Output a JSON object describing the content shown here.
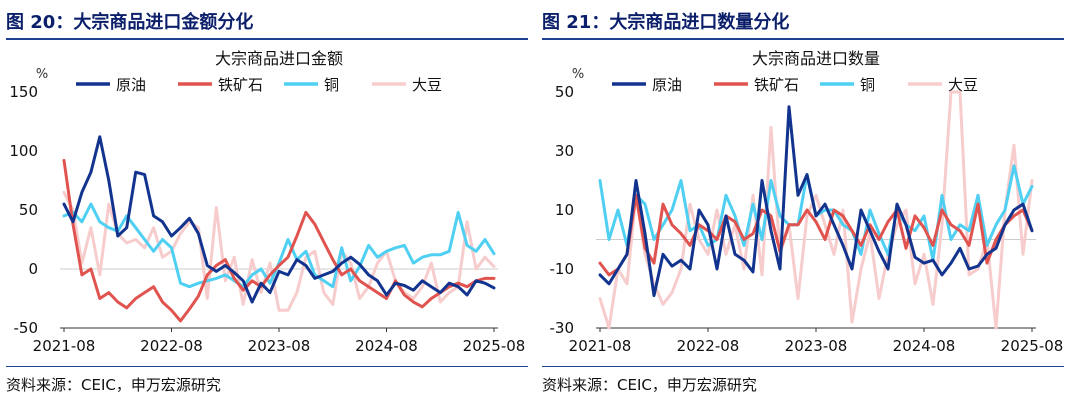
{
  "figures": [
    {
      "fig_title": "图 20：大宗商品进口金额分化",
      "source": "资料来源：CEIC，申万宏源研究"
    },
    {
      "fig_title": "图 21：大宗商品进口数量分化",
      "source": "资料来源：CEIC，申万宏源研究"
    }
  ],
  "colors": {
    "title_blue": "#0b1f6b",
    "crude": "#12348f",
    "iron_ore": "#e0534f",
    "copper": "#4fd0f2",
    "soybean": "#f7cccc"
  },
  "chart_data": [
    {
      "type": "line",
      "title": "大宗商品进口金额",
      "y_unit": "%",
      "ylim": [
        -50,
        150
      ],
      "yticks": [
        -50,
        0,
        50,
        100,
        150
      ],
      "x_tick_labels": [
        "2021-08",
        "2022-08",
        "2023-08",
        "2024-08",
        "2025-08"
      ],
      "x_tick_index": [
        0,
        12,
        24,
        36,
        48
      ],
      "legend_position": "top",
      "grid": false,
      "series": [
        {
          "name": "原油",
          "color": "#12348f",
          "values": [
            55,
            40,
            65,
            82,
            112,
            75,
            28,
            35,
            82,
            80,
            45,
            40,
            28,
            35,
            43,
            30,
            3,
            -2,
            3,
            -3,
            -10,
            -28,
            -12,
            -20,
            -2,
            -5,
            8,
            3,
            -8,
            -5,
            -2,
            5,
            10,
            4,
            -5,
            -10,
            -22,
            -12,
            -14,
            -18,
            -10,
            -15,
            -20,
            -12,
            -15,
            -22,
            -10,
            -12,
            -16
          ]
        },
        {
          "name": "铁矿石",
          "color": "#e0534f",
          "values": [
            92,
            38,
            -5,
            0,
            -25,
            -20,
            -28,
            -33,
            -25,
            -20,
            -15,
            -28,
            -35,
            -44,
            -34,
            -23,
            -5,
            3,
            8,
            -8,
            -18,
            -10,
            -15,
            -5,
            3,
            10,
            28,
            48,
            38,
            23,
            8,
            -5,
            0,
            -10,
            -15,
            -20,
            -25,
            -10,
            -22,
            -28,
            -32,
            -25,
            -20,
            -15,
            -12,
            -15,
            -10,
            -8,
            -8
          ]
        },
        {
          "name": "铜",
          "color": "#4fd0f2",
          "values": [
            45,
            48,
            40,
            55,
            40,
            35,
            32,
            45,
            35,
            25,
            15,
            25,
            18,
            -12,
            -15,
            -12,
            -10,
            -8,
            -5,
            -10,
            -15,
            -5,
            0,
            -12,
            5,
            25,
            8,
            15,
            -5,
            -10,
            -15,
            18,
            -10,
            2,
            20,
            10,
            15,
            18,
            20,
            5,
            10,
            12,
            12,
            15,
            48,
            20,
            15,
            25,
            13
          ]
        },
        {
          "name": "大豆",
          "color": "#f7cccc",
          "values": [
            65,
            50,
            5,
            35,
            -5,
            55,
            30,
            22,
            25,
            18,
            35,
            10,
            15,
            30,
            40,
            35,
            -25,
            52,
            -10,
            10,
            -30,
            8,
            -20,
            5,
            -35,
            -35,
            -20,
            10,
            15,
            -20,
            -30,
            15,
            5,
            -25,
            -15,
            5,
            15,
            -10,
            -20,
            -25,
            -15,
            5,
            -28,
            -20,
            -15,
            40,
            0,
            10,
            2
          ]
        }
      ]
    },
    {
      "type": "line",
      "title": "大宗商品进口数量",
      "y_unit": "%",
      "ylim": [
        -30,
        50
      ],
      "yticks": [
        -30,
        -10,
        10,
        30,
        50
      ],
      "x_tick_labels": [
        "2021-08",
        "2022-08",
        "2023-08",
        "2024-08",
        "2025-08"
      ],
      "x_tick_index": [
        0,
        12,
        24,
        36,
        48
      ],
      "legend_position": "top",
      "grid": false,
      "series": [
        {
          "name": "原油",
          "color": "#12348f",
          "values": [
            -12,
            -15,
            -10,
            -5,
            20,
            2,
            -19,
            -5,
            -9,
            -7,
            -10,
            10,
            5,
            -10,
            8,
            -5,
            -7,
            -11,
            20,
            3,
            -10,
            45,
            15,
            22,
            8,
            12,
            5,
            -2,
            -10,
            10,
            3,
            -4,
            -10,
            12,
            5,
            -6,
            -8,
            -7,
            -12,
            -8,
            -3,
            -10,
            -9,
            -5,
            -3,
            5,
            10,
            12,
            3
          ]
        },
        {
          "name": "铁矿石",
          "color": "#e0534f",
          "values": [
            -8,
            -12,
            -10,
            -5,
            15,
            -3,
            -8,
            12,
            5,
            2,
            -2,
            5,
            3,
            0,
            8,
            6,
            0,
            2,
            10,
            8,
            -4,
            5,
            5,
            10,
            6,
            0,
            10,
            8,
            3,
            -2,
            5,
            0,
            6,
            10,
            -3,
            8,
            4,
            -2,
            10,
            5,
            3,
            -2,
            12,
            -8,
            0,
            5,
            8,
            10,
            3
          ]
        },
        {
          "name": "铜",
          "color": "#4fd0f2",
          "values": [
            20,
            0,
            10,
            -2,
            15,
            12,
            0,
            5,
            10,
            20,
            3,
            5,
            -2,
            0,
            15,
            8,
            -2,
            12,
            0,
            20,
            8,
            5,
            5,
            22,
            8,
            10,
            10,
            5,
            3,
            -5,
            10,
            2,
            -5,
            10,
            5,
            3,
            8,
            -7,
            15,
            0,
            5,
            3,
            15,
            -2,
            5,
            10,
            25,
            12,
            18
          ]
        },
        {
          "name": "大豆",
          "color": "#f7cccc",
          "values": [
            -20,
            -30,
            -10,
            -15,
            15,
            -5,
            -15,
            -22,
            -18,
            -10,
            12,
            0,
            -5,
            10,
            -5,
            5,
            -10,
            15,
            -12,
            38,
            -5,
            5,
            -20,
            8,
            15,
            5,
            -5,
            10,
            -28,
            -10,
            2,
            -20,
            -5,
            5,
            10,
            -15,
            -5,
            -22,
            5,
            55,
            55,
            -12,
            -10,
            0,
            -30,
            10,
            32,
            -5,
            20
          ]
        }
      ]
    }
  ]
}
